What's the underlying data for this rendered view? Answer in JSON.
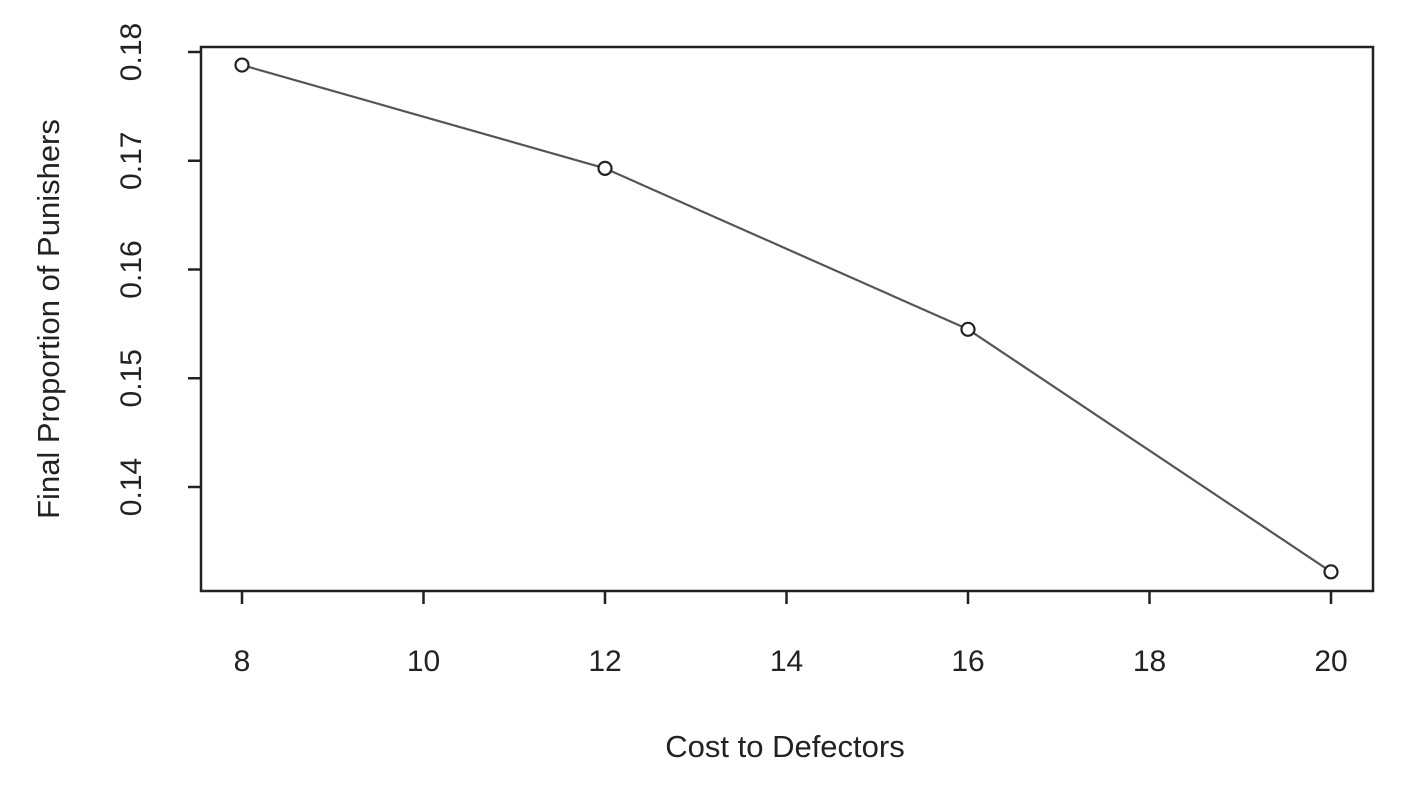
{
  "chart_data": {
    "type": "line",
    "title": "",
    "xlabel": "Cost to Defectors",
    "ylabel": "Final Proportion of Punishers",
    "x": [
      8,
      12,
      16,
      20
    ],
    "series": [
      {
        "values": [
          0.1788,
          0.1693,
          0.1545,
          0.1322
        ]
      }
    ],
    "xlim": [
      8,
      20
    ],
    "ylim": [
      0.13,
      0.18
    ],
    "xticks": [
      8,
      10,
      12,
      14,
      16,
      18,
      20
    ],
    "yticks": [
      0.14,
      0.15,
      0.16,
      0.17,
      0.18
    ],
    "xtick_labels": [
      "8",
      "10",
      "12",
      "14",
      "16",
      "18",
      "20"
    ],
    "ytick_labels": [
      "0.14",
      "0.15",
      "0.16",
      "0.17",
      "0.18"
    ],
    "grid": false,
    "legend": "none",
    "marker": "open-circle",
    "line_color": "#555555",
    "axis_color": "#222222"
  }
}
